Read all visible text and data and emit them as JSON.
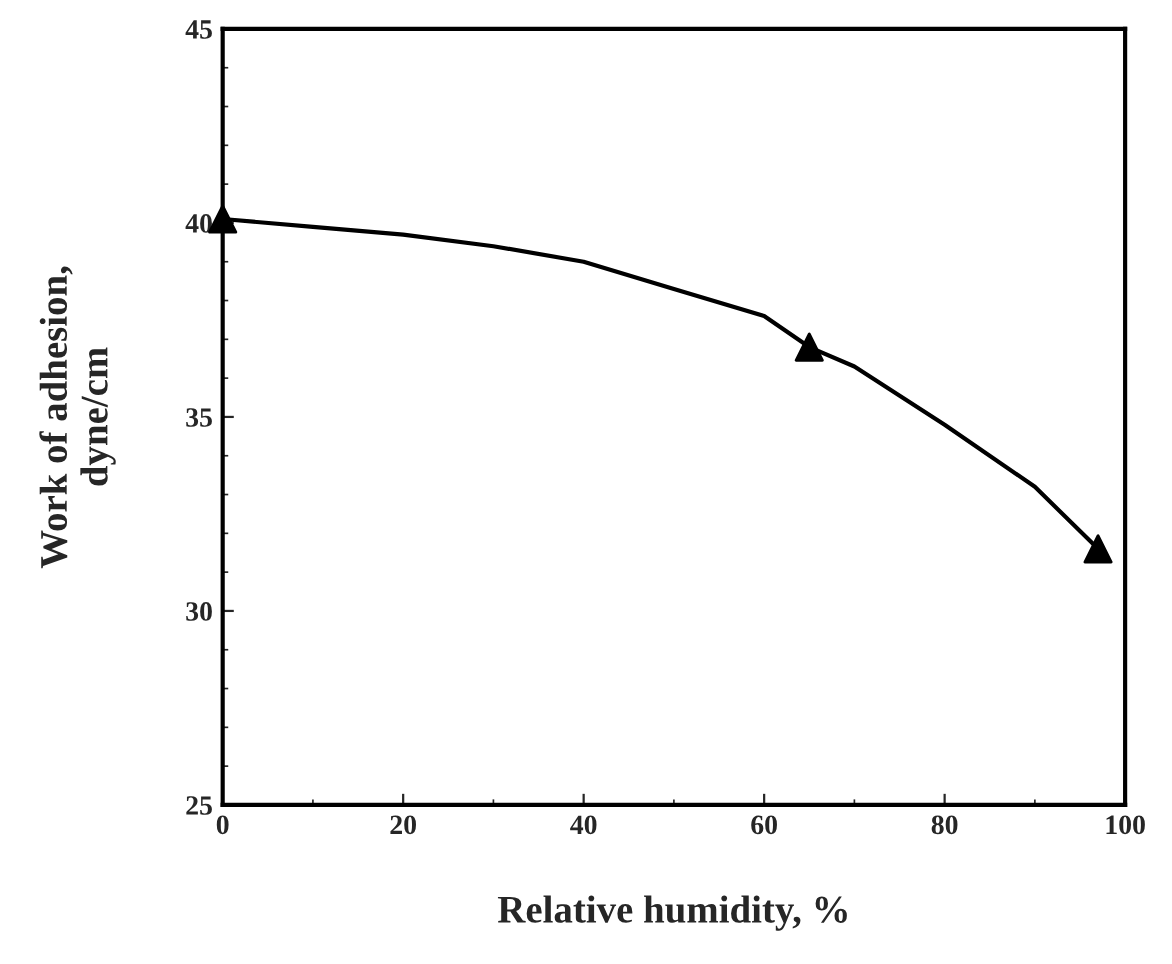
{
  "chart_data": {
    "type": "line",
    "xlabel": "Relative humidity, %",
    "ylabel": "Work of adhesion,\ndyne/cm",
    "xlim": [
      0,
      100
    ],
    "xticks": [
      0,
      20,
      40,
      60,
      80,
      100
    ],
    "ylim": [
      25,
      45
    ],
    "yticks": [
      25,
      30,
      35,
      40,
      45
    ],
    "grid": false,
    "legend": false,
    "series": [
      {
        "color": "#000000",
        "marker": "none",
        "line_style": "solid",
        "x": [
          0,
          10,
          20,
          30,
          40,
          50,
          60,
          65,
          70,
          80,
          90,
          97
        ],
        "values": [
          40.1,
          39.9,
          39.7,
          39.4,
          39.0,
          38.3,
          37.6,
          36.8,
          36.3,
          34.8,
          33.2,
          31.6
        ]
      },
      {
        "type": "scatter",
        "color": "#000000",
        "marker": "triangle",
        "x": [
          0,
          65,
          97
        ],
        "values": [
          40.1,
          36.8,
          31.6
        ]
      }
    ]
  }
}
